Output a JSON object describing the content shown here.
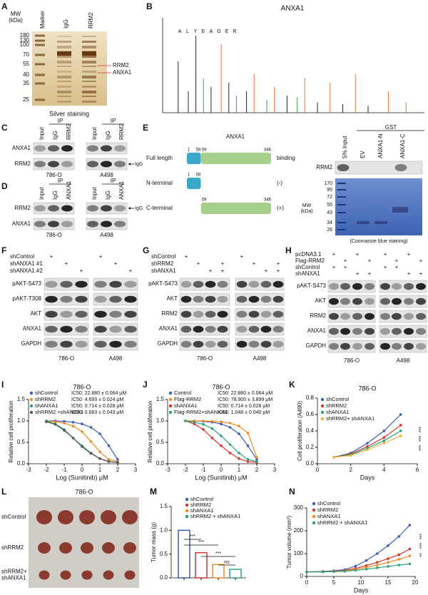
{
  "panel_labels": [
    "A",
    "B",
    "C",
    "D",
    "E",
    "F",
    "G",
    "H",
    "I",
    "J",
    "K",
    "L",
    "M",
    "N"
  ],
  "A": {
    "mw": [
      "MW",
      "(kDa)"
    ],
    "markers": [
      "180",
      "130",
      "100",
      "70",
      "55",
      "40",
      "35",
      "25"
    ],
    "lanes": [
      "Marker",
      "IgG",
      "RRM2"
    ],
    "bands": [
      "RRM2",
      "ANXA1"
    ],
    "caption": "Silver staining"
  },
  "B": {
    "title": "ANXA1",
    "sequence": [
      "A",
      "L",
      "Y",
      "E",
      "A",
      "G",
      "E",
      "R"
    ],
    "peaks": {
      "x": [
        5,
        9,
        12,
        15,
        18,
        22,
        25,
        28,
        32,
        35,
        40,
        43,
        48,
        52,
        55,
        60,
        65,
        70,
        75,
        80,
        88,
        95
      ],
      "values": [
        60,
        25,
        90,
        40,
        30,
        80,
        35,
        20,
        25,
        45,
        15,
        30,
        20,
        18,
        40,
        12,
        35,
        10,
        45,
        8,
        25,
        12
      ],
      "colors": [
        "#222",
        "#222",
        "#222",
        "#3aa04a",
        "#222",
        "#e8743b",
        "#222",
        "#3aa04a",
        "#222",
        "#e8743b",
        "#3aa04a",
        "#e8743b",
        "#222",
        "#3aa04a",
        "#e8743b",
        "#222",
        "#e8743b",
        "#222",
        "#e8743b",
        "#222",
        "#e8743b",
        "#e8743b"
      ]
    }
  },
  "C": {
    "ip": "IP",
    "lanes": [
      "Input",
      "IgG",
      "RRM2"
    ],
    "rows": [
      "ANXA1",
      "RRM2"
    ],
    "marker": "IgG",
    "cells": [
      "786-O",
      "A498"
    ]
  },
  "D": {
    "ip": "IP",
    "lanes": [
      "Input",
      "IgG",
      "ANXA1"
    ],
    "rows": [
      "RRM2",
      "ANXA1"
    ],
    "marker": "IgG",
    "cells": [
      "786-O",
      "A498"
    ]
  },
  "E": {
    "title": "ANXA1",
    "constructs": [
      {
        "name": "Full length",
        "numbers": [
          1,
          58,
          59,
          346
        ],
        "segment_colors": [
          "#3aa7c9",
          "#a8d08d"
        ],
        "result": "binding"
      },
      {
        "name": "N-terminal",
        "numbers": [
          1,
          58
        ],
        "segment_colors": [
          "#3aa7c9"
        ],
        "result": "(-)"
      },
      {
        "name": "C-terminal",
        "numbers": [
          59,
          346
        ],
        "segment_colors": [
          "#a8d08d"
        ],
        "result": "(+)"
      }
    ],
    "gst": "GST",
    "gst_lanes": [
      "5% Input",
      "EV",
      "ANXA1-N",
      "ANXA1-C"
    ],
    "blot_row": "RRM2",
    "mw": [
      "MW",
      "(kDa)"
    ],
    "markers": [
      "170",
      "95",
      "72",
      "55",
      "43",
      "34",
      "26"
    ],
    "caption": "(Coomassie blue staining)"
  },
  "F": {
    "conditions": [
      {
        "name": "shControl",
        "signs": [
          "+",
          null,
          null,
          "+",
          null,
          null
        ]
      },
      {
        "name": "shANXA1 #1",
        "signs": [
          null,
          "+",
          null,
          null,
          "+",
          null
        ]
      },
      {
        "name": "shANXA1 #2",
        "signs": [
          null,
          null,
          "+",
          null,
          null,
          "+"
        ]
      }
    ],
    "rows": [
      "pAKT-S473",
      "pAKT-T308",
      "AKT",
      "ANXA1",
      "GAPDH"
    ],
    "cells": [
      "786-O",
      "A498"
    ]
  },
  "G": {
    "conditions": [
      {
        "name": "shControl",
        "signs": [
          "+",
          null,
          null,
          null,
          "+",
          null,
          null,
          null
        ]
      },
      {
        "name": "shRRM2",
        "signs": [
          null,
          "+",
          null,
          "+",
          null,
          "+",
          null,
          "+"
        ]
      },
      {
        "name": "shANXA1",
        "signs": [
          null,
          null,
          "+",
          "+",
          null,
          null,
          "+",
          "+"
        ]
      }
    ],
    "rows": [
      "pAKT-S473",
      "AKT",
      "RRM2",
      "ANXA1",
      "GAPDH"
    ],
    "cells": [
      "786-O",
      "A498"
    ]
  },
  "H": {
    "conditions": [
      {
        "name": "pcDNA3.1",
        "signs": [
          "+",
          null,
          "+",
          null,
          "+",
          null,
          "+",
          null
        ]
      },
      {
        "name": "Flag-RRM2",
        "signs": [
          null,
          "+",
          null,
          "+",
          null,
          "+",
          null,
          "+"
        ]
      },
      {
        "name": "shControl",
        "signs": [
          "+",
          "+",
          null,
          null,
          "+",
          "+",
          null,
          null
        ]
      },
      {
        "name": "shANXA1",
        "signs": [
          null,
          null,
          "+",
          "+",
          null,
          null,
          "+",
          "+"
        ]
      }
    ],
    "rows": [
      "pAKT-S473",
      "AKT",
      "RRM2",
      "ANXA1",
      "GAPDH"
    ],
    "cells": [
      "786-O",
      "A498"
    ]
  },
  "L": {
    "title": "786-O",
    "rows": [
      [
        "shControl"
      ],
      [
        "shRRM2"
      ],
      [
        "shRRM2+",
        "shANXA1"
      ]
    ]
  },
  "chart_data": [
    {
      "type": "line",
      "title": "786-O",
      "xlabel": "Log (Sunitinib) μM",
      "ylabel": "Relative cell proliferation",
      "x": [
        -2,
        -1.5,
        -1,
        -0.5,
        0,
        0.5,
        1,
        1.5,
        2
      ],
      "series": [
        {
          "name": "shControl",
          "color": "#3b5bb5",
          "values": [
            1.0,
            1.0,
            0.99,
            0.97,
            0.93,
            0.85,
            0.7,
            0.42,
            0.1
          ],
          "ic50": "IC50: 22.880 ± 0.064 μM"
        },
        {
          "name": "shRRM2",
          "color": "#f08a24",
          "values": [
            1.0,
            0.98,
            0.95,
            0.88,
            0.75,
            0.52,
            0.28,
            0.1,
            0.05
          ],
          "ic50": "IC50: 4.693 ± 0.024 μM"
        },
        {
          "name": "shANXA1",
          "color": "#2aa37a",
          "values": [
            1.0,
            0.93,
            0.8,
            0.6,
            0.42,
            0.25,
            0.12,
            0.05,
            0.03
          ],
          "ic50": "IC50: 0.714 ± 0.028 μM"
        },
        {
          "name": "shRRM2 +shANXA1",
          "color": "#555555",
          "values": [
            0.98,
            0.92,
            0.78,
            0.6,
            0.4,
            0.24,
            0.12,
            0.05,
            0.03
          ],
          "ic50": "IC50: 0.683 ± 0.043 μM"
        }
      ],
      "xlim": [
        -3,
        3
      ],
      "xticks": [
        -3,
        -2,
        -1,
        0,
        1,
        2,
        3
      ],
      "ylim": [
        0,
        1.5
      ],
      "yticks": [
        {
          "value": 0,
          "label": "0.0"
        },
        0.5,
        {
          "value": 1,
          "label": "1.0"
        },
        1.5
      ]
    },
    {
      "type": "line",
      "title": "786-O",
      "xlabel": "Log (Sunitinib) μM",
      "ylabel": "Relative cell proliferation",
      "x": [
        -2,
        -1.5,
        -1,
        -0.5,
        0,
        0.5,
        1,
        1.5,
        2
      ],
      "series": [
        {
          "name": "Control",
          "color": "#3b5bb5",
          "values": [
            1.0,
            1.0,
            0.99,
            0.97,
            0.93,
            0.85,
            0.7,
            0.42,
            0.1
          ],
          "ic50": "IC50: 22.880 ± 0.064 μM"
        },
        {
          "name": "Flag-RRM2",
          "color": "#f08a24",
          "values": [
            1.0,
            1.0,
            1.0,
            0.99,
            0.98,
            0.95,
            0.88,
            0.72,
            0.15
          ],
          "ic50": "IC50: 78.900 ± 3.899 μM"
        },
        {
          "name": "shANXA1",
          "color": "#d9342b",
          "values": [
            1.0,
            0.93,
            0.8,
            0.6,
            0.42,
            0.25,
            0.12,
            0.05,
            0.03
          ],
          "ic50": "IC50: 0.714 ± 0.028 μM"
        },
        {
          "name": "Flag-RRM2+shANXA1",
          "color": "#2aa37a",
          "values": [
            1.0,
            0.97,
            0.92,
            0.82,
            0.65,
            0.45,
            0.25,
            0.1,
            0.05
          ],
          "ic50": "IC50: 1.048 ± 0.040 μM"
        }
      ],
      "xlim": [
        -3,
        3
      ],
      "xticks": [
        -3,
        -2,
        -1,
        0,
        1,
        2,
        3
      ],
      "ylim": [
        0,
        1.5
      ],
      "yticks": [
        {
          "value": 0,
          "label": "0.0"
        },
        0.5,
        {
          "value": 1,
          "label": "1.0"
        },
        1.5
      ]
    },
    {
      "type": "line",
      "title": "786-O",
      "xlabel": "Days",
      "ylabel": "Cell proliferation (A490)",
      "x": [
        1,
        2,
        3,
        4,
        5
      ],
      "series": [
        {
          "name": "shControl",
          "color": "#3b5bb5",
          "values": [
            0.08,
            0.13,
            0.25,
            0.4,
            0.6
          ]
        },
        {
          "name": "shRRM2",
          "color": "#d9342b",
          "values": [
            0.08,
            0.12,
            0.21,
            0.32,
            0.47
          ]
        },
        {
          "name": "shANXA1",
          "color": "#2aa37a",
          "values": [
            0.08,
            0.11,
            0.19,
            0.28,
            0.4
          ]
        },
        {
          "name": "shRRM2+ shANXA1",
          "color": "#f2b134",
          "values": [
            0.08,
            0.1,
            0.17,
            0.25,
            0.34
          ]
        }
      ],
      "xlim": [
        0,
        6
      ],
      "xticks": [
        0,
        2,
        4,
        6
      ],
      "ylim": [
        0,
        0.8
      ],
      "yticks": [
        {
          "value": 0,
          "label": "0.0"
        },
        0.2,
        0.4,
        0.6,
        0.8
      ],
      "annotations": [
        "***",
        "***",
        "***"
      ]
    },
    {
      "type": "bar",
      "ylabel": "Tumor mass (g)",
      "categories": [
        null
      ],
      "series": [
        {
          "name": "shControl",
          "color": "#3b5bb5",
          "values": [
            1.0
          ]
        },
        {
          "name": "shRRM2",
          "color": "#d9342b",
          "values": [
            0.53
          ]
        },
        {
          "name": "shANXA1",
          "color": "#f08a24",
          "values": [
            0.28
          ]
        },
        {
          "name": "shRRM2 + shANXA1",
          "color": "#2aa37a",
          "values": [
            0.18
          ]
        }
      ],
      "ylim": [
        0,
        1.5
      ],
      "yticks": [
        {
          "value": 0,
          "label": "0.0"
        },
        0.5,
        {
          "value": 1,
          "label": "1.0"
        },
        1.5
      ],
      "annotations": [
        "***",
        "***",
        "***",
        "ns"
      ]
    },
    {
      "type": "line",
      "xlabel": "Days",
      "ylabel": "Tumor volume (mm³)",
      "x": [
        0,
        3,
        5,
        7,
        9,
        11,
        13,
        15,
        17,
        19
      ],
      "series": [
        {
          "name": "shControl",
          "color": "#3b5bb5",
          "values": [
            20,
            22,
            25,
            30,
            45,
            70,
            100,
            135,
            175,
            225
          ]
        },
        {
          "name": "shRRM2",
          "color": "#d9342b",
          "values": [
            20,
            21,
            23,
            27,
            35,
            48,
            62,
            78,
            95,
            120
          ]
        },
        {
          "name": "shANXA1",
          "color": "#f08a24",
          "values": [
            20,
            20,
            22,
            25,
            31,
            40,
            50,
            62,
            75,
            90
          ]
        },
        {
          "name": "shRRM2 + shANXA1",
          "color": "#2aa37a",
          "values": [
            20,
            20,
            21,
            23,
            27,
            32,
            38,
            44,
            50,
            55
          ]
        }
      ],
      "xlim": [
        0,
        20
      ],
      "xticks": [
        0,
        5,
        10,
        15,
        20
      ],
      "ylim": [
        0,
        300
      ],
      "yticks": [
        0,
        100,
        200,
        300
      ],
      "annotations": [
        "***",
        "***",
        "**"
      ]
    }
  ]
}
